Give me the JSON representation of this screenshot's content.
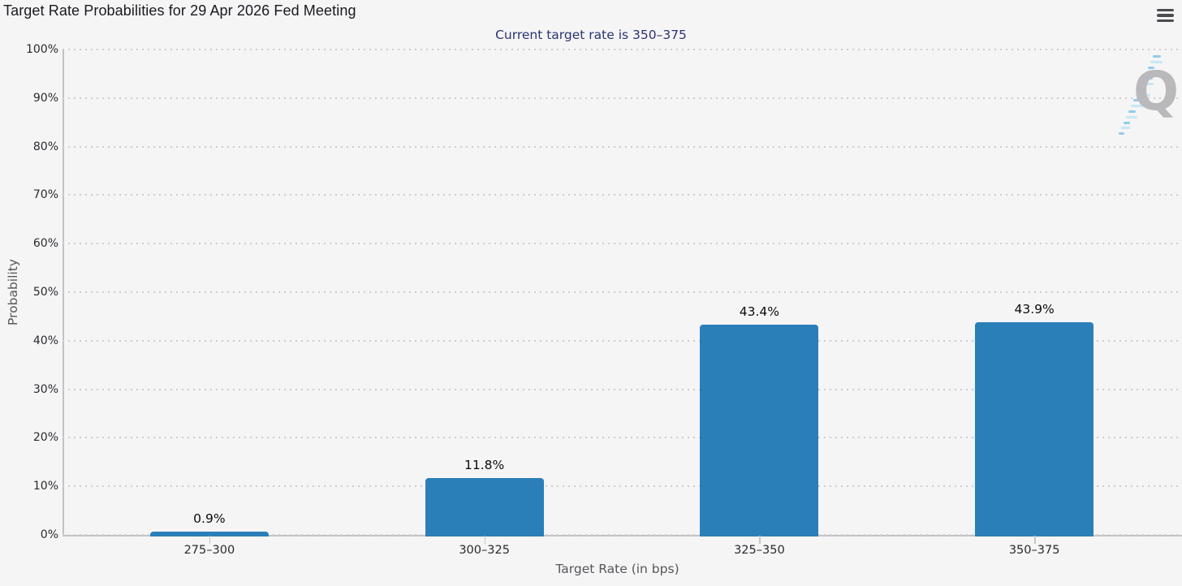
{
  "menu": {
    "icon": "hamburger-icon"
  },
  "watermark": {
    "letter": "Q"
  },
  "colors": {
    "background": "#f5f5f6",
    "bar": "#2b7fb8",
    "subtitle_text": "#293470",
    "title_text": "#191920",
    "axis_line": "#c2c2c6",
    "grid_dot": "#cdcdd0",
    "axis_title_text": "#57575c",
    "tick_label_text": "#2a2a2e",
    "watermark_q": "#b9b9bc",
    "watermark_dash_light": "#c7e6f5",
    "watermark_dash_dark": "#93cbea",
    "menu_icon": "#4c4c50"
  },
  "chart_data": {
    "type": "bar",
    "title": "Target Rate Probabilities for 29 Apr 2026 Fed Meeting",
    "subtitle": "Current target rate is 350–375",
    "categories": [
      "275–300",
      "300–325",
      "325–350",
      "350–375"
    ],
    "values": [
      0.9,
      11.8,
      43.4,
      43.9
    ],
    "data_labels": [
      "0.9%",
      "11.8%",
      "43.4%",
      "43.9%"
    ],
    "xlabel": "Target Rate (in bps)",
    "ylabel": "Probability",
    "ylim": [
      0,
      100
    ],
    "ytick_step": 10,
    "ytick_labels": [
      "0%",
      "10%",
      "20%",
      "30%",
      "40%",
      "50%",
      "60%",
      "70%",
      "80%",
      "90%",
      "100%"
    ],
    "grid": "dotted-horizontal",
    "legend": "none",
    "bar_color": "#2b7fb8"
  }
}
